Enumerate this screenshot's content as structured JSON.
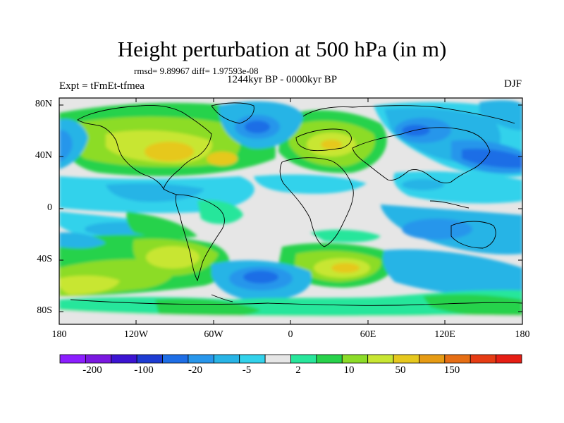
{
  "title": "Height perturbation at 500 hPa (in m)",
  "stats": "rmsd= 9.89967 diff= 1.97593e-08",
  "period": "1244kyr BP - 0000kyr BP",
  "experiment": "Expt = tFmEt-tfmea",
  "season": "DJF",
  "lat_labels": [
    "80N",
    "40N",
    "0",
    "40S",
    "80S"
  ],
  "lon_labels": [
    "180",
    "120W",
    "60W",
    "0",
    "60E",
    "120E",
    "180"
  ],
  "colorbar": {
    "colors": [
      "#8c1eff",
      "#7a18e0",
      "#3c14d2",
      "#1e3cd2",
      "#1e6ee6",
      "#2896eb",
      "#28b4e6",
      "#32d2eb",
      "#e6e6e6",
      "#28e69b",
      "#28d24b",
      "#8cdc28",
      "#c8e632",
      "#e6c81e",
      "#e69b14",
      "#e66e14",
      "#e63c14",
      "#e61e14"
    ],
    "labels": [
      "-200",
      "-100",
      "-20",
      "-5",
      "2",
      "10",
      "50",
      "150"
    ]
  }
}
